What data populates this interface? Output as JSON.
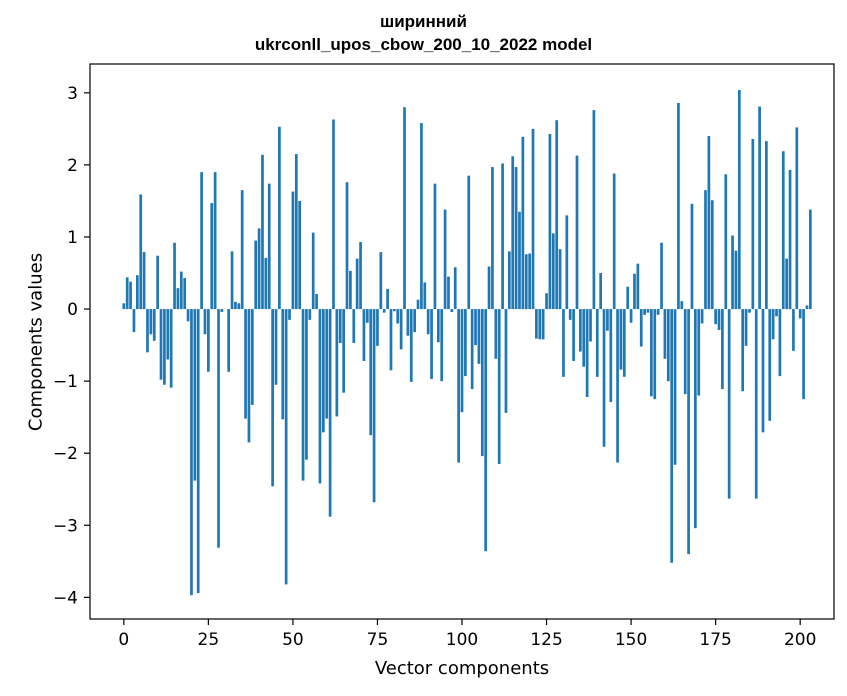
{
  "chart_data": {
    "type": "bar",
    "title": "ширинний",
    "subtitle": "ukrconll_upos_cbow_200_10_2022 model",
    "xlabel": "Vector components",
    "ylabel": "Components values",
    "xlim": [
      -10,
      210
    ],
    "ylim": [
      -4.3,
      3.4
    ],
    "xticks": [
      0,
      25,
      50,
      75,
      100,
      125,
      150,
      175,
      200
    ],
    "yticks": [
      -4,
      -3,
      -2,
      -1,
      0,
      1,
      2,
      3
    ],
    "grid": false,
    "bar_color": "#1f77b4",
    "values": [
      0.08,
      0.44,
      0.38,
      -0.32,
      0.47,
      1.59,
      0.79,
      -0.6,
      -0.35,
      -0.44,
      0.74,
      -0.98,
      -1.05,
      -0.7,
      -1.09,
      0.92,
      0.29,
      0.52,
      0.43,
      -0.17,
      -3.97,
      -2.38,
      -3.94,
      1.9,
      -0.35,
      -0.87,
      1.47,
      1.9,
      -3.31,
      -0.04,
      0.0,
      -0.87,
      0.8,
      0.1,
      0.08,
      1.65,
      -1.52,
      -1.85,
      -1.33,
      0.95,
      1.12,
      2.14,
      0.71,
      1.74,
      -2.46,
      -1.05,
      2.53,
      -1.53,
      -3.82,
      -0.15,
      1.63,
      2.15,
      1.5,
      -2.38,
      -2.09,
      -0.15,
      1.06,
      0.21,
      -2.42,
      -1.71,
      -1.52,
      -2.88,
      2.63,
      -1.49,
      -0.47,
      -1.16,
      1.76,
      0.53,
      -0.47,
      0.7,
      0.93,
      -0.72,
      -0.19,
      -1.75,
      -2.68,
      -0.51,
      0.79,
      -0.05,
      0.28,
      -0.85,
      -0.03,
      -0.2,
      -0.56,
      2.8,
      -0.37,
      -1.01,
      -0.32,
      0.13,
      2.58,
      0.37,
      -0.35,
      -0.97,
      1.74,
      -0.46,
      -1.0,
      1.38,
      0.45,
      -0.04,
      0.58,
      -2.13,
      -1.43,
      -0.93,
      1.85,
      -1.11,
      -0.5,
      -0.76,
      -2.04,
      -3.36,
      0.59,
      1.97,
      -0.69,
      -2.15,
      2.02,
      -1.44,
      0.8,
      2.12,
      1.97,
      1.35,
      2.39,
      0.76,
      0.77,
      2.5,
      -0.41,
      -0.42,
      -0.42,
      0.22,
      2.43,
      1.05,
      2.62,
      0.83,
      -0.94,
      1.3,
      -0.15,
      -0.72,
      2.13,
      -0.59,
      -0.8,
      -1.22,
      -0.45,
      2.76,
      -0.94,
      0.5,
      -1.91,
      -0.3,
      -1.29,
      1.88,
      -2.13,
      -0.84,
      -0.94,
      0.31,
      -0.19,
      0.49,
      0.63,
      -0.52,
      -0.08,
      -0.05,
      -1.21,
      -1.25,
      -0.08,
      0.92,
      -0.69,
      -1.0,
      -3.52,
      -2.16,
      2.86,
      0.11,
      -1.18,
      -3.4,
      1.46,
      -3.04,
      -1.2,
      -0.2,
      1.65,
      2.4,
      1.51,
      -0.21,
      -0.29,
      -1.11,
      1.87,
      -2.63,
      1.02,
      0.81,
      3.04,
      -1.14,
      -0.51,
      -0.05,
      2.36,
      -2.63,
      2.81,
      -1.71,
      2.33,
      -1.55,
      -0.42,
      -0.1,
      -0.93,
      2.19,
      0.7,
      1.93,
      -0.58,
      2.52,
      -0.13,
      -1.25,
      0.05,
      1.38
    ]
  }
}
